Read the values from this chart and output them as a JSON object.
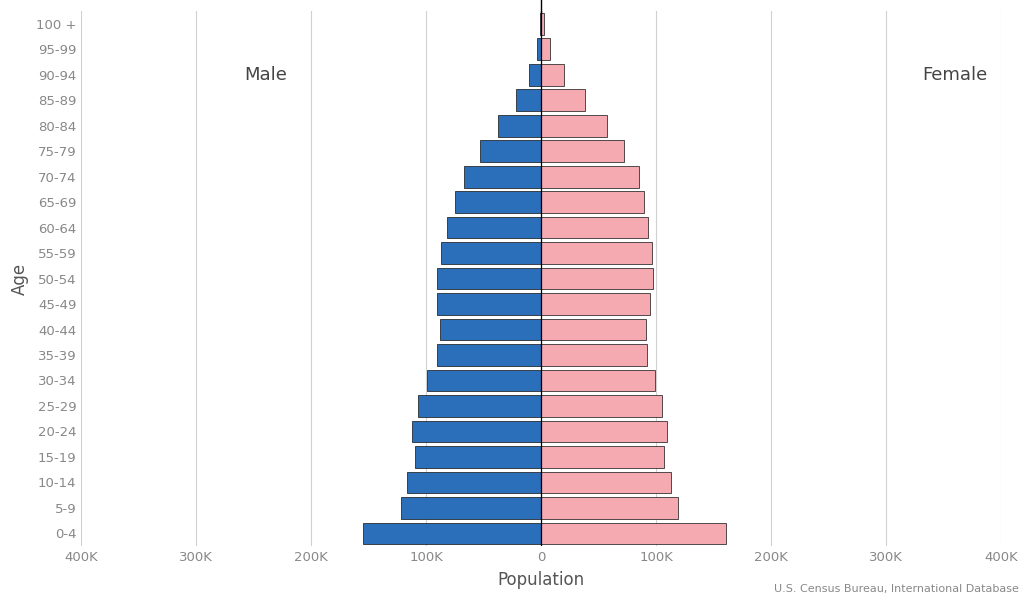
{
  "age_groups": [
    "0-4",
    "5-9",
    "10-14",
    "15-19",
    "20-24",
    "25-29",
    "30-34",
    "35-39",
    "40-44",
    "45-49",
    "50-54",
    "55-59",
    "60-64",
    "65-69",
    "70-74",
    "75-79",
    "80-84",
    "85-89",
    "90-94",
    "95-99",
    "100 +"
  ],
  "male": [
    155000,
    122000,
    117000,
    110000,
    112000,
    107000,
    99000,
    91000,
    88000,
    91000,
    91000,
    87000,
    82000,
    75000,
    67000,
    53000,
    38000,
    22000,
    10500,
    3500,
    700
  ],
  "female": [
    161000,
    119000,
    113000,
    107000,
    109000,
    105000,
    99000,
    92000,
    91000,
    95000,
    97000,
    96000,
    93000,
    89000,
    85000,
    72000,
    57000,
    38000,
    20000,
    7700,
    2100
  ],
  "male_color": "#2b6fba",
  "female_color": "#f4aab0",
  "bar_edgecolor": "#111111",
  "bar_linewidth": 0.5,
  "xlim": 400000,
  "xlabel": "Population",
  "ylabel": "Age",
  "label_male": "Male",
  "label_female": "Female",
  "source_text": "U.S. Census Bureau, International Database",
  "background_color": "#ffffff",
  "grid_color": "#d0d0d0",
  "tick_label_color": "#888888",
  "axis_label_color": "#555555",
  "annotation_color": "#444444",
  "vline_color": "#000000",
  "font_family": "DejaVu Sans"
}
